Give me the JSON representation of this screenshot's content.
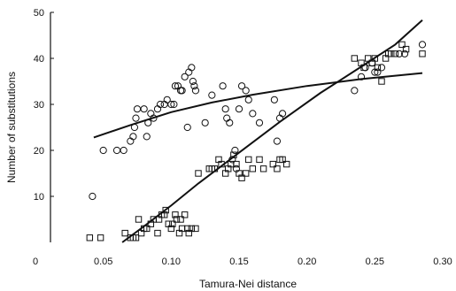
{
  "chart_data": {
    "type": "scatter",
    "xlabel": "Tamura-Nei distance",
    "ylabel": "Number of substitutions",
    "xlim": [
      0,
      0.3
    ],
    "ylim": [
      0,
      50
    ],
    "x_ticks": [
      0,
      0.05,
      0.1,
      0.15,
      0.2,
      0.25,
      0.3
    ],
    "x_tick_labels": [
      "0",
      "0.05",
      "0.10",
      "0.15",
      "0.20",
      "0.25",
      "0.30"
    ],
    "y_ticks": [
      10,
      20,
      30,
      40,
      50
    ],
    "y_tick_labels": [
      "10",
      "20",
      "30",
      "40",
      "50"
    ],
    "grid": false,
    "legend": "none",
    "colors": {
      "ink": "#111111",
      "background": "#ffffff"
    },
    "series": [
      {
        "marker": "circle",
        "points": [
          [
            0.042,
            10
          ],
          [
            0.05,
            20
          ],
          [
            0.06,
            20
          ],
          [
            0.065,
            20
          ],
          [
            0.07,
            22
          ],
          [
            0.072,
            23
          ],
          [
            0.073,
            25
          ],
          [
            0.074,
            27
          ],
          [
            0.075,
            29
          ],
          [
            0.08,
            29
          ],
          [
            0.082,
            23
          ],
          [
            0.083,
            26
          ],
          [
            0.085,
            28
          ],
          [
            0.087,
            27
          ],
          [
            0.09,
            29
          ],
          [
            0.092,
            30
          ],
          [
            0.095,
            30
          ],
          [
            0.097,
            31
          ],
          [
            0.1,
            30
          ],
          [
            0.102,
            30
          ],
          [
            0.103,
            34
          ],
          [
            0.105,
            34
          ],
          [
            0.107,
            33
          ],
          [
            0.108,
            33
          ],
          [
            0.11,
            36
          ],
          [
            0.112,
            25
          ],
          [
            0.113,
            37
          ],
          [
            0.115,
            38
          ],
          [
            0.116,
            35
          ],
          [
            0.117,
            34
          ],
          [
            0.118,
            33
          ],
          [
            0.125,
            26
          ],
          [
            0.13,
            32
          ],
          [
            0.138,
            34
          ],
          [
            0.14,
            29
          ],
          [
            0.141,
            27
          ],
          [
            0.143,
            26
          ],
          [
            0.145,
            18
          ],
          [
            0.147,
            20
          ],
          [
            0.148,
            16
          ],
          [
            0.15,
            29
          ],
          [
            0.152,
            34
          ],
          [
            0.155,
            33
          ],
          [
            0.157,
            31
          ],
          [
            0.16,
            28
          ],
          [
            0.165,
            26
          ],
          [
            0.176,
            31
          ],
          [
            0.178,
            22
          ],
          [
            0.18,
            27
          ],
          [
            0.182,
            28
          ],
          [
            0.235,
            33
          ],
          [
            0.24,
            36
          ],
          [
            0.243,
            38
          ],
          [
            0.248,
            39
          ],
          [
            0.25,
            37
          ],
          [
            0.252,
            37
          ],
          [
            0.255,
            38
          ],
          [
            0.268,
            41
          ],
          [
            0.272,
            41
          ],
          [
            0.285,
            43
          ]
        ]
      },
      {
        "marker": "square",
        "points": [
          [
            0.04,
            1
          ],
          [
            0.048,
            1
          ],
          [
            0.066,
            2
          ],
          [
            0.07,
            1
          ],
          [
            0.072,
            1
          ],
          [
            0.074,
            1
          ],
          [
            0.076,
            5
          ],
          [
            0.078,
            2
          ],
          [
            0.08,
            3
          ],
          [
            0.082,
            3
          ],
          [
            0.085,
            4
          ],
          [
            0.087,
            5
          ],
          [
            0.09,
            2
          ],
          [
            0.091,
            5
          ],
          [
            0.093,
            6
          ],
          [
            0.095,
            6
          ],
          [
            0.096,
            7
          ],
          [
            0.098,
            4
          ],
          [
            0.1,
            3
          ],
          [
            0.101,
            4
          ],
          [
            0.103,
            6
          ],
          [
            0.104,
            5
          ],
          [
            0.106,
            2
          ],
          [
            0.107,
            5
          ],
          [
            0.108,
            3
          ],
          [
            0.11,
            6
          ],
          [
            0.112,
            3
          ],
          [
            0.113,
            2
          ],
          [
            0.115,
            3
          ],
          [
            0.118,
            3
          ],
          [
            0.12,
            15
          ],
          [
            0.128,
            16
          ],
          [
            0.13,
            16
          ],
          [
            0.132,
            16
          ],
          [
            0.135,
            18
          ],
          [
            0.137,
            17
          ],
          [
            0.14,
            15
          ],
          [
            0.142,
            16
          ],
          [
            0.144,
            17
          ],
          [
            0.146,
            19
          ],
          [
            0.148,
            17
          ],
          [
            0.15,
            15
          ],
          [
            0.152,
            14
          ],
          [
            0.155,
            15
          ],
          [
            0.157,
            18
          ],
          [
            0.16,
            16
          ],
          [
            0.165,
            18
          ],
          [
            0.168,
            16
          ],
          [
            0.175,
            17
          ],
          [
            0.178,
            16
          ],
          [
            0.18,
            18
          ],
          [
            0.182,
            18
          ],
          [
            0.185,
            17
          ],
          [
            0.235,
            40
          ],
          [
            0.24,
            39
          ],
          [
            0.242,
            38
          ],
          [
            0.245,
            40
          ],
          [
            0.248,
            39
          ],
          [
            0.25,
            40
          ],
          [
            0.252,
            38
          ],
          [
            0.255,
            35
          ],
          [
            0.258,
            40
          ],
          [
            0.26,
            41
          ],
          [
            0.262,
            41
          ],
          [
            0.265,
            41
          ],
          [
            0.27,
            43
          ],
          [
            0.273,
            42
          ],
          [
            0.285,
            41
          ]
        ]
      }
    ],
    "trend_lines": [
      {
        "marker": "circle",
        "points": [
          [
            0.043,
            22.8
          ],
          [
            0.07,
            25.5
          ],
          [
            0.1,
            28.3
          ],
          [
            0.13,
            30.4
          ],
          [
            0.16,
            32.1
          ],
          [
            0.2,
            34.0
          ],
          [
            0.24,
            35.5
          ],
          [
            0.285,
            36.8
          ]
        ]
      },
      {
        "marker": "square",
        "points": [
          [
            0.064,
            0
          ],
          [
            0.08,
            3.5
          ],
          [
            0.1,
            8.0
          ],
          [
            0.12,
            12.8
          ],
          [
            0.15,
            19.5
          ],
          [
            0.18,
            26.2
          ],
          [
            0.21,
            32.5
          ],
          [
            0.24,
            38.2
          ],
          [
            0.265,
            43.0
          ],
          [
            0.285,
            48.3
          ]
        ]
      }
    ]
  }
}
